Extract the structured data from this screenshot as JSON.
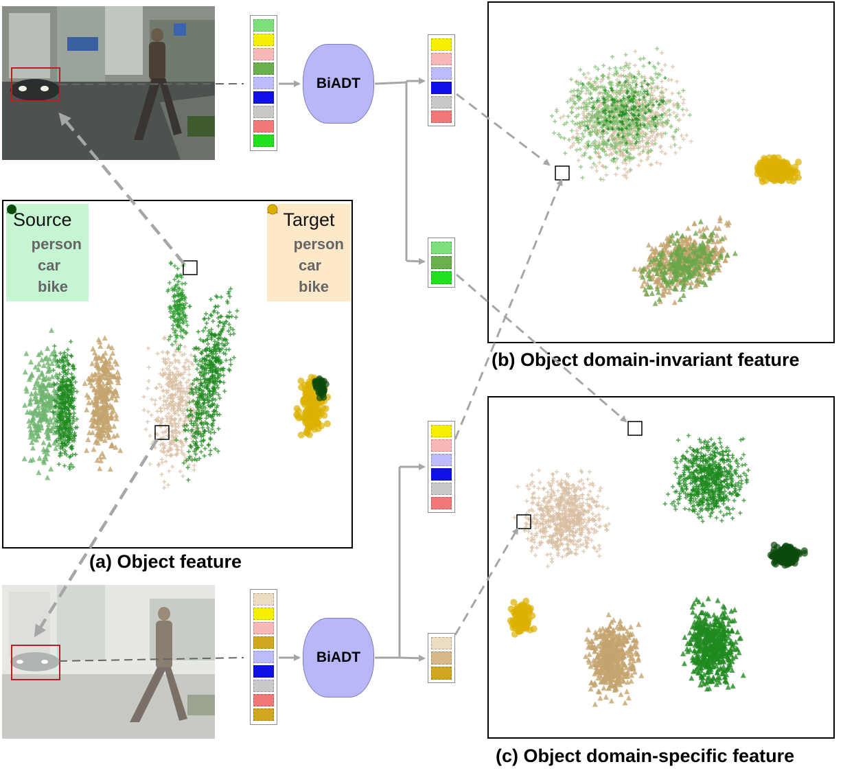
{
  "legend": {
    "source": {
      "title": "Source",
      "items": [
        {
          "label": "person",
          "icon": "triangle-icon",
          "color": "#8fd48f"
        },
        {
          "label": "car",
          "icon": "cross-icon",
          "color": "#1f8a1f"
        },
        {
          "label": "bike",
          "icon": "circle-icon",
          "color": "#0c4a0c"
        }
      ]
    },
    "target": {
      "title": "Target",
      "items": [
        {
          "label": "person",
          "icon": "triangle-icon",
          "color": "#b89a6a"
        },
        {
          "label": "car",
          "icon": "cross-icon",
          "color": "#d6bfa0"
        },
        {
          "label": "bike",
          "icon": "circle-icon",
          "color": "#dcb000"
        }
      ]
    }
  },
  "nodes": {
    "biadt_top": "BiADT",
    "biadt_bottom": "BiADT"
  },
  "captions": {
    "a": "(a) Object feature",
    "b": "(b) Object domain-invariant feature",
    "c": "(c) Object domain-specific feature"
  },
  "vectors": {
    "source_input": [
      "#7de07d",
      "#f4f000",
      "#f8b8b8",
      "#6ab04c",
      "#bcbcfc",
      "#1010e8",
      "#c8c8c8",
      "#f07878",
      "#20e020"
    ],
    "source_invariant": [
      "#f4f000",
      "#f8b8b8",
      "#bcbcfc",
      "#1010e8",
      "#c8c8c8",
      "#f07878"
    ],
    "source_specific": [
      "#7de07d",
      "#6ab04c",
      "#20e020"
    ],
    "target_input": [
      "#ecdcc4",
      "#f4f000",
      "#f8b8b8",
      "#d0a820",
      "#bcbcfc",
      "#1010e8",
      "#c8c8c8",
      "#f07878",
      "#d0a820"
    ],
    "target_invariant": [
      "#f4f000",
      "#f8b8b8",
      "#bcbcfc",
      "#1010e8",
      "#c8c8c8",
      "#f07878"
    ],
    "target_specific": [
      "#ecdcc4",
      "#d8b888",
      "#d0a820"
    ]
  },
  "colors": {
    "box_outline": "#b22222",
    "arrow": "#a6a6a6",
    "dashed_arrow_dark": "#666666",
    "source_legend_bg": "#c6f5d4",
    "target_legend_bg": "#fde8c8"
  }
}
